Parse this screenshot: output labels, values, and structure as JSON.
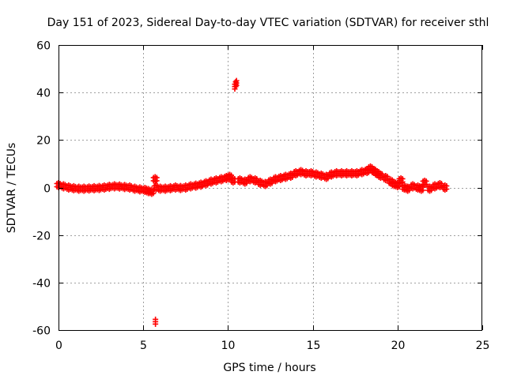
{
  "chart_data": {
    "type": "scatter",
    "title": "Day 151 of 2023, Sidereal Day-to-day VTEC variation (SDTVAR) for receiver sthl",
    "xlabel": "GPS time / hours",
    "ylabel": "SDTVAR / TECUs",
    "xlim": [
      0,
      25
    ],
    "ylim": [
      -60,
      60
    ],
    "xticks": [
      0,
      5,
      10,
      15,
      20,
      25
    ],
    "xtick_labels": [
      "0",
      "5",
      "10",
      "15",
      "20",
      "25"
    ],
    "yticks": [
      -60,
      -40,
      -20,
      0,
      20,
      40,
      60
    ],
    "ytick_labels": [
      "-60",
      "-40",
      "-20",
      "0",
      "20",
      "40",
      "60"
    ],
    "grid": true,
    "marker": "plus",
    "series": [
      {
        "name": "SDTVAR",
        "color": "#ff0000",
        "x": [
          0.0,
          0.3,
          0.6,
          0.9,
          1.2,
          1.5,
          1.8,
          2.1,
          2.4,
          2.7,
          3.0,
          3.3,
          3.6,
          3.9,
          4.2,
          4.5,
          4.8,
          5.1,
          5.3,
          5.5,
          5.7,
          5.72,
          5.75,
          6.0,
          6.3,
          6.6,
          6.9,
          7.2,
          7.5,
          7.8,
          8.1,
          8.4,
          8.7,
          9.0,
          9.3,
          9.6,
          9.9,
          10.1,
          10.3,
          10.4,
          10.45,
          10.5,
          10.7,
          11.0,
          11.3,
          11.6,
          11.9,
          12.2,
          12.5,
          12.8,
          13.1,
          13.4,
          13.7,
          14.0,
          14.3,
          14.6,
          14.9,
          15.2,
          15.5,
          15.8,
          16.1,
          16.4,
          16.7,
          17.0,
          17.3,
          17.6,
          17.9,
          18.2,
          18.4,
          18.6,
          18.8,
          19.0,
          19.3,
          19.6,
          19.8,
          20.0,
          20.2,
          20.4,
          20.6,
          20.9,
          21.2,
          21.4,
          21.6,
          21.9,
          22.2,
          22.5,
          22.8
        ],
        "y": [
          1.0,
          0.5,
          0.0,
          -0.3,
          -0.5,
          -0.5,
          -0.4,
          -0.3,
          -0.2,
          0.0,
          0.3,
          0.5,
          0.4,
          0.2,
          0.0,
          -0.5,
          -0.8,
          -1.0,
          -1.5,
          -1.8,
          3.5,
          -56.5,
          0.0,
          -0.5,
          -0.5,
          -0.3,
          0.0,
          -0.2,
          0.0,
          0.5,
          0.8,
          1.2,
          1.8,
          2.5,
          3.0,
          3.5,
          4.0,
          4.5,
          3.0,
          42.5,
          43.5,
          44.0,
          3.0,
          2.5,
          3.5,
          3.0,
          2.0,
          1.5,
          2.5,
          3.5,
          4.0,
          4.5,
          5.0,
          6.0,
          6.5,
          6.0,
          6.0,
          5.5,
          5.0,
          4.5,
          5.5,
          6.0,
          6.0,
          6.0,
          6.0,
          6.0,
          6.5,
          7.0,
          8.0,
          7.0,
          6.0,
          5.0,
          4.0,
          2.5,
          1.5,
          1.0,
          3.0,
          0.0,
          -0.5,
          0.5,
          0.0,
          -0.5,
          2.0,
          -0.5,
          0.5,
          1.0,
          0.0
        ]
      }
    ]
  }
}
